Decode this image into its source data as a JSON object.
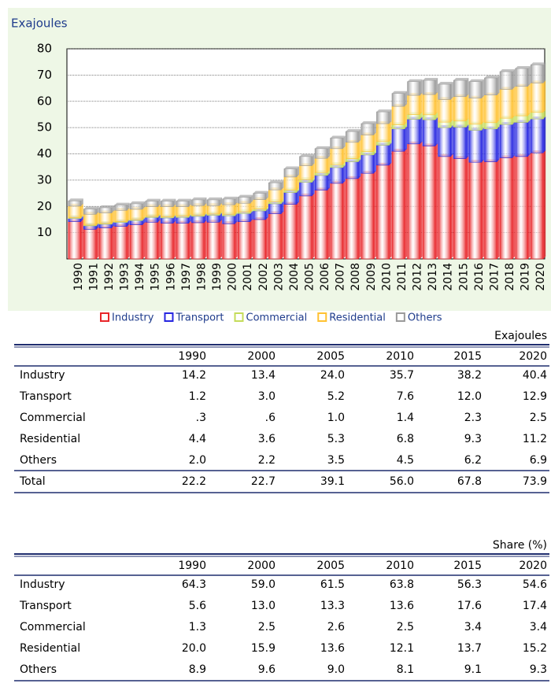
{
  "chart_data": {
    "type": "bar",
    "stacked": true,
    "title": "Exajoules",
    "categories": [
      "1990",
      "1991",
      "1992",
      "1993",
      "1994",
      "1995",
      "1996",
      "1997",
      "1998",
      "1999",
      "2000",
      "2001",
      "2002",
      "2003",
      "2004",
      "2005",
      "2006",
      "2007",
      "2008",
      "2009",
      "2010",
      "2011",
      "2012",
      "2013",
      "2014",
      "2015",
      "2016",
      "2017",
      "2018",
      "2019",
      "2020"
    ],
    "series": [
      {
        "name": "Industry",
        "color": "#e8262a",
        "values": [
          14.2,
          11.3,
          11.8,
          12.4,
          13.0,
          14.0,
          13.6,
          13.6,
          13.8,
          14.0,
          13.4,
          14.2,
          15.0,
          17.2,
          20.8,
          24.0,
          26.2,
          28.8,
          30.6,
          32.6,
          35.7,
          41.0,
          43.8,
          43.0,
          39.0,
          38.2,
          36.8,
          37.0,
          38.5,
          39.0,
          40.4
        ]
      },
      {
        "name": "Transport",
        "color": "#2626e0",
        "values": [
          1.2,
          1.3,
          1.4,
          1.5,
          1.6,
          1.8,
          2.0,
          2.2,
          2.4,
          2.6,
          3.0,
          3.1,
          3.3,
          3.8,
          4.5,
          5.2,
          5.6,
          6.0,
          6.4,
          7.0,
          7.6,
          8.5,
          9.4,
          10.0,
          11.0,
          12.0,
          12.2,
          12.5,
          12.7,
          13.0,
          12.9
        ]
      },
      {
        "name": "Commercial",
        "color": "#c4dc5a",
        "values": [
          0.3,
          0.3,
          0.3,
          0.3,
          0.4,
          0.4,
          0.4,
          0.5,
          0.5,
          0.5,
          0.6,
          0.6,
          0.7,
          0.8,
          0.9,
          1.0,
          1.1,
          1.1,
          1.2,
          1.3,
          1.4,
          1.6,
          1.8,
          1.9,
          2.1,
          2.3,
          2.3,
          2.4,
          2.4,
          2.5,
          2.5
        ]
      },
      {
        "name": "Residential",
        "color": "#ffc232",
        "values": [
          4.4,
          4.1,
          4.0,
          4.3,
          3.9,
          3.7,
          3.9,
          3.6,
          3.6,
          3.2,
          3.6,
          3.3,
          3.6,
          4.5,
          5.0,
          5.3,
          5.4,
          6.1,
          6.2,
          6.3,
          6.8,
          7.0,
          7.3,
          7.7,
          8.6,
          9.3,
          9.9,
          10.5,
          11.0,
          11.2,
          11.2
        ]
      },
      {
        "name": "Others",
        "color": "#9a9a9a",
        "values": [
          2.0,
          2.0,
          2.0,
          2.0,
          2.1,
          2.1,
          2.1,
          2.1,
          2.2,
          2.2,
          2.2,
          2.3,
          2.4,
          2.7,
          3.1,
          3.5,
          3.7,
          4.0,
          4.1,
          4.3,
          4.5,
          4.9,
          5.2,
          5.4,
          5.8,
          6.2,
          6.3,
          6.5,
          6.7,
          6.8,
          6.9
        ]
      }
    ],
    "ylim": [
      0,
      80
    ],
    "yticks": [
      10,
      20,
      30,
      40,
      50,
      60,
      70,
      80
    ],
    "grid": true,
    "legend": "bottom"
  },
  "tables": [
    {
      "unit": "Exajoules",
      "columns": [
        "1990",
        "2000",
        "2005",
        "2010",
        "2015",
        "2020"
      ],
      "rows": [
        {
          "label": "Industry",
          "values": [
            "14.2",
            "13.4",
            "24.0",
            "35.7",
            "38.2",
            "40.4"
          ]
        },
        {
          "label": "Transport",
          "values": [
            "1.2",
            "3.0",
            "5.2",
            "7.6",
            "12.0",
            "12.9"
          ]
        },
        {
          "label": "Commercial",
          "values": [
            ".3",
            ".6",
            "1.0",
            "1.4",
            "2.3",
            "2.5"
          ]
        },
        {
          "label": "Residential",
          "values": [
            "4.4",
            "3.6",
            "5.3",
            "6.8",
            "9.3",
            "11.2"
          ]
        },
        {
          "label": "Others",
          "values": [
            "2.0",
            "2.2",
            "3.5",
            "4.5",
            "6.2",
            "6.9"
          ]
        },
        {
          "label": "Total",
          "values": [
            "22.2",
            "22.7",
            "39.1",
            "56.0",
            "67.8",
            "73.9"
          ]
        }
      ]
    },
    {
      "unit": "Share (%)",
      "columns": [
        "1990",
        "2000",
        "2005",
        "2010",
        "2015",
        "2020"
      ],
      "rows": [
        {
          "label": "Industry",
          "values": [
            "64.3",
            "59.0",
            "61.5",
            "63.8",
            "56.3",
            "54.6"
          ]
        },
        {
          "label": "Transport",
          "values": [
            "5.6",
            "13.0",
            "13.3",
            "13.6",
            "17.6",
            "17.4"
          ]
        },
        {
          "label": "Commercial",
          "values": [
            "1.3",
            "2.5",
            "2.6",
            "2.5",
            "3.4",
            "3.4"
          ]
        },
        {
          "label": "Residential",
          "values": [
            "20.0",
            "15.9",
            "13.6",
            "12.1",
            "13.7",
            "15.2"
          ]
        },
        {
          "label": "Others",
          "values": [
            "8.9",
            "9.6",
            "9.0",
            "8.1",
            "9.1",
            "9.3"
          ]
        }
      ]
    }
  ]
}
